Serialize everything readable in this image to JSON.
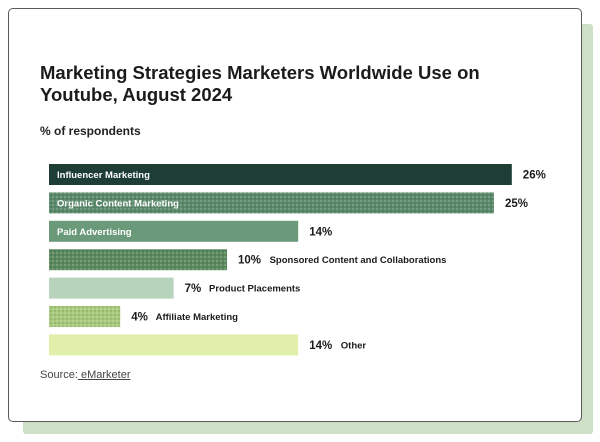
{
  "page": {
    "title": "Marketing Strategies Marketers Worldwide Use on Youtube, August 2024",
    "subtitle": "% of respondents",
    "source_prefix": "Source:",
    "source_link": " eMarketer"
  },
  "colors": {
    "c1": "#1d3d35",
    "c2": "#5b8a6b",
    "c3": "#6b9a7b",
    "c4": "#5c8a5f",
    "c5": "#b7d3bc",
    "c6": "#a7c97b",
    "c7": "#e0f0ab"
  },
  "chart_data": {
    "type": "bar",
    "orientation": "horizontal",
    "title": "Marketing Strategies Marketers Worldwide Use on Youtube, August 2024",
    "subtitle": "% of respondents",
    "unit": "%",
    "categories": [
      "Influencer Marketing",
      "Organic Content Marketing",
      "Paid Advertising",
      "Sponsored Content and Collaborations",
      "Product Placements",
      "Affiliate Marketing",
      "Other"
    ],
    "values": [
      26,
      25,
      14,
      10,
      7,
      4,
      14
    ],
    "labels": [
      "26%",
      "25%",
      "14%",
      "10%",
      "7%",
      "4%",
      "14%"
    ],
    "colors": [
      "#1d3d35",
      "#5b8a6b",
      "#6b9a7b",
      "#5c8a5f",
      "#b7d3bc",
      "#a7c97b",
      "#e0f0ab"
    ],
    "patterned": [
      false,
      true,
      false,
      true,
      false,
      true,
      false
    ],
    "label_inside": [
      true,
      true,
      true,
      false,
      false,
      false,
      false
    ],
    "grid": false,
    "legend": "none"
  }
}
